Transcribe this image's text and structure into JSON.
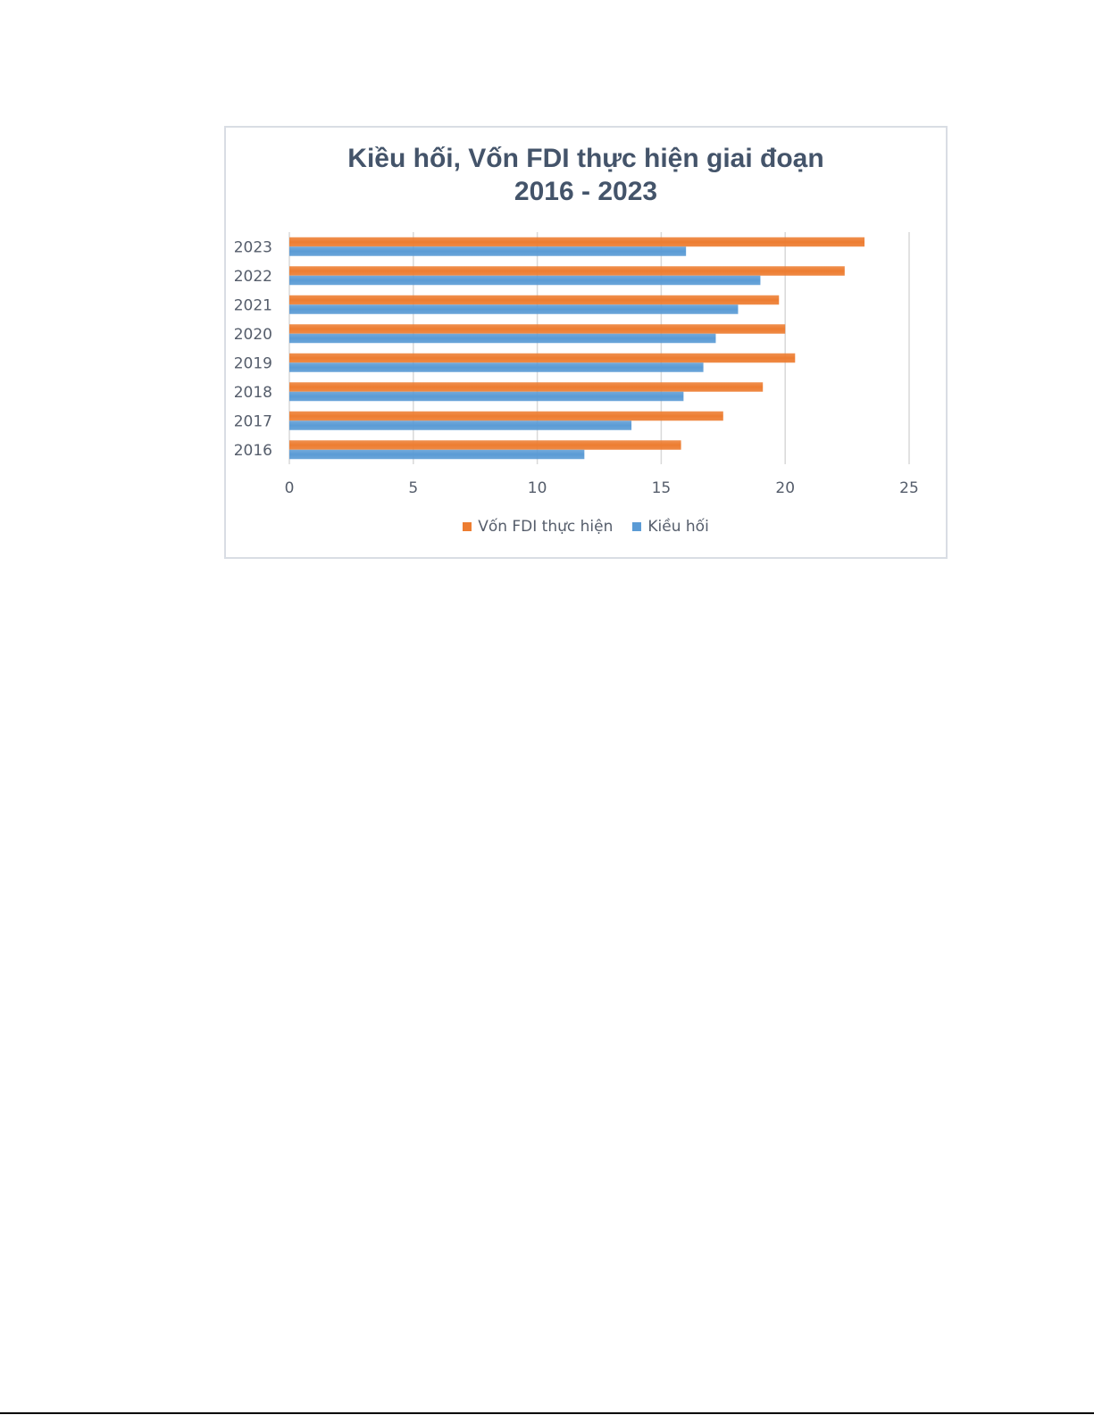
{
  "chart_data": {
    "type": "bar",
    "orientation": "horizontal",
    "title_lines": [
      "Kiều hối, Vốn FDI thực hiện giai đoạn",
      "2016 - 2023"
    ],
    "categories": [
      "2016",
      "2017",
      "2018",
      "2019",
      "2020",
      "2021",
      "2022",
      "2023"
    ],
    "series": [
      {
        "name": "Vốn FDI thực hiện",
        "color": "#ed7d31",
        "values": [
          15.8,
          17.5,
          19.1,
          20.4,
          20.0,
          19.75,
          22.4,
          23.2
        ]
      },
      {
        "name": "Kiều hối",
        "color": "#5b9bd5",
        "values": [
          11.9,
          13.8,
          15.9,
          16.7,
          17.2,
          18.1,
          19.0,
          16.0
        ]
      }
    ],
    "x_ticks": [
      "0",
      "5",
      "10",
      "15",
      "20",
      "25"
    ],
    "xlim": [
      0,
      25
    ],
    "grid": true,
    "legend_position": "bottom"
  }
}
